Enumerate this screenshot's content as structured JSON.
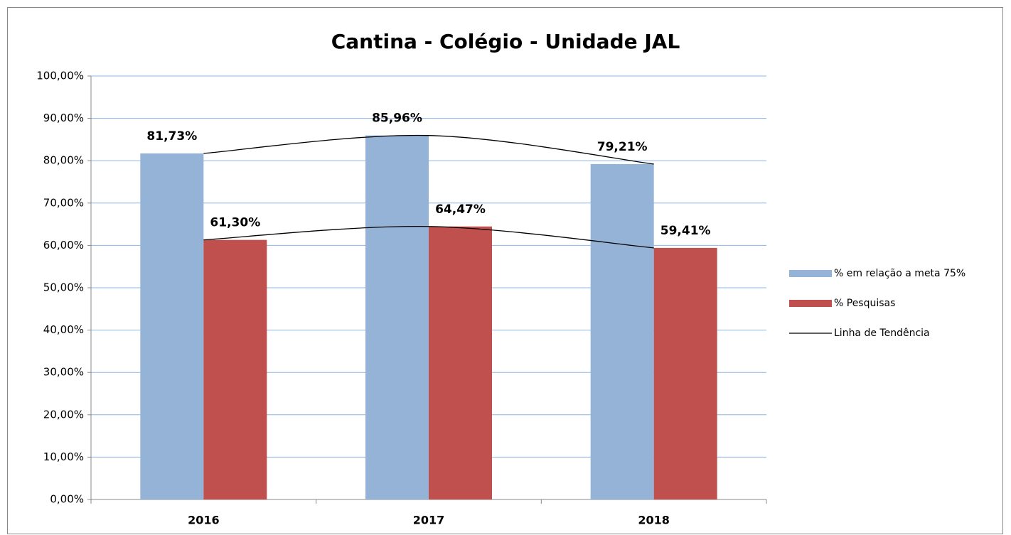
{
  "chart_data": {
    "type": "bar",
    "title": "Cantina - Colégio - Unidade JAL",
    "categories": [
      "2016",
      "2017",
      "2018"
    ],
    "series": [
      {
        "name": "% em relação a meta 75%",
        "color": "#95b3d7",
        "values": [
          81.73,
          85.96,
          79.21
        ],
        "value_labels": [
          "81,73%",
          "85,96%",
          "79,21%"
        ]
      },
      {
        "name": "% Pesquisas",
        "color": "#c0504d",
        "values": [
          61.3,
          64.47,
          59.41
        ],
        "value_labels": [
          "61,30%",
          "64,47%",
          "59,41%"
        ]
      }
    ],
    "trendline": {
      "name": "Linha de Tendência",
      "color": "#000000"
    },
    "ylim": [
      0,
      100
    ],
    "yticks": [
      {
        "value": 0,
        "label": "0,00%"
      },
      {
        "value": 10,
        "label": "10,00%"
      },
      {
        "value": 20,
        "label": "20,00%"
      },
      {
        "value": 30,
        "label": "30,00%"
      },
      {
        "value": 40,
        "label": "40,00%"
      },
      {
        "value": 50,
        "label": "50,00%"
      },
      {
        "value": 60,
        "label": "60,00%"
      },
      {
        "value": 70,
        "label": "70,00%"
      },
      {
        "value": 80,
        "label": "80,00%"
      },
      {
        "value": 90,
        "label": "90,00%"
      },
      {
        "value": 100,
        "label": "100,00%"
      }
    ],
    "grid": true,
    "legend": "right"
  }
}
